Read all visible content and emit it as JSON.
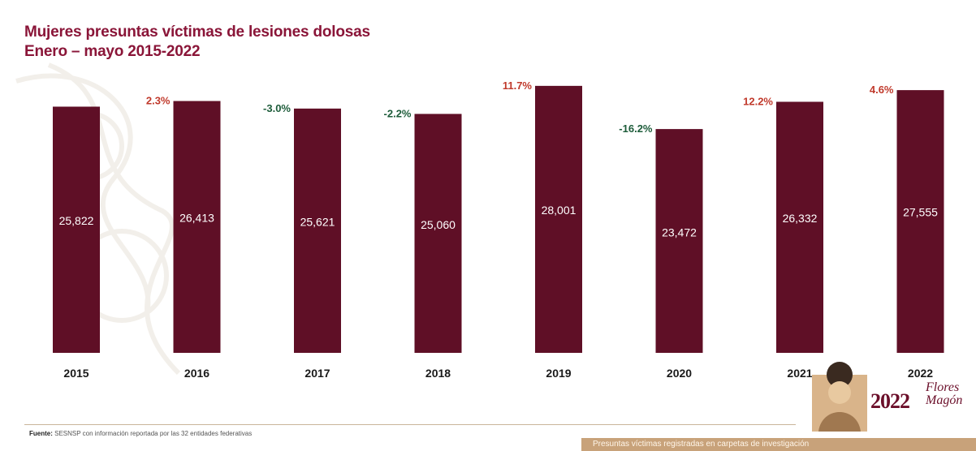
{
  "title": {
    "line1": "Mujeres presuntas víctimas de lesiones dolosas",
    "line2": "Enero – mayo 2015-2022"
  },
  "source": {
    "label": "Fuente:",
    "text": "SESNSP con información reportada por las 32 entidades federativas"
  },
  "logo": {
    "year": "2022",
    "name": "Flores Magón"
  },
  "banner": {
    "text": "Presuntas víctimas registradas en carpetas de investigación"
  },
  "colors": {
    "bar": "#5f0f26",
    "title": "#8a1538",
    "increase": "#c0392b",
    "decrease": "#1d5c3a"
  },
  "chart_data": {
    "type": "bar",
    "categories": [
      "2015",
      "2016",
      "2017",
      "2018",
      "2019",
      "2020",
      "2021",
      "2022"
    ],
    "values": [
      25822,
      26413,
      25621,
      25060,
      28001,
      23472,
      26332,
      27555
    ],
    "value_labels": [
      "25,822",
      "26,413",
      "25,621",
      "25,060",
      "28,001",
      "23,472",
      "26,332",
      "27,555"
    ],
    "changes": [
      "",
      "2.3%",
      "-3.0%",
      "-2.2%",
      "11.7%",
      "-16.2%",
      "12.2%",
      "4.6%"
    ],
    "change_direction": [
      "",
      "up",
      "down",
      "down",
      "up",
      "down",
      "up",
      "up"
    ],
    "ylim": [
      0,
      28500
    ],
    "grid": false,
    "legend": "none"
  }
}
